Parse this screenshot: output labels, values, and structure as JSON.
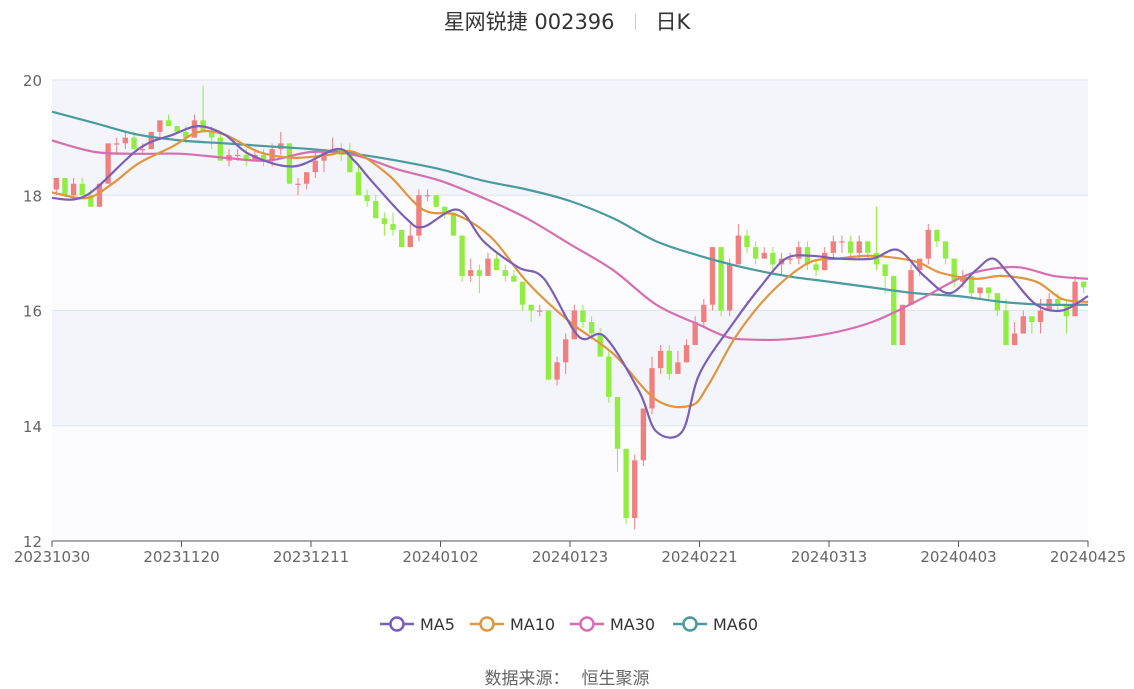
{
  "header": {
    "stock_name_code": "星网锐捷 002396",
    "period": "日K"
  },
  "source": {
    "label": "数据来源：",
    "value": "恒生聚源"
  },
  "colors": {
    "up": "#f08080",
    "down": "#90ee40",
    "ma5": "#7b5fb5",
    "ma10": "#e0953e",
    "ma30": "#d66fb0",
    "ma60": "#4a9a9e",
    "band": "#f3f5fb",
    "grid": "#e0e6f0"
  },
  "chart_data": {
    "type": "candlestick",
    "title": "星网锐捷 002396",
    "ylim": [
      12,
      20
    ],
    "yticks": [
      12,
      14,
      16,
      18,
      20
    ],
    "x_tick_labels": [
      "20231030",
      "20231120",
      "20231211",
      "20240102",
      "20240123",
      "20240221",
      "20240313",
      "20240403",
      "20240425"
    ],
    "x_tick_positions": [
      0,
      15,
      30,
      45,
      60,
      75,
      90,
      105,
      120
    ],
    "n_days": 120,
    "legend": [
      "MA5",
      "MA10",
      "MA30",
      "MA60"
    ],
    "legend_placement": "bottom-center",
    "ohlc": [
      [
        18.1,
        18.3,
        18.0,
        18.3
      ],
      [
        18.3,
        18.3,
        18.0,
        18.0
      ],
      [
        18.0,
        18.3,
        17.9,
        18.2
      ],
      [
        18.2,
        18.3,
        18.0,
        18.0
      ],
      [
        18.0,
        18.1,
        17.8,
        17.8
      ],
      [
        17.8,
        18.2,
        17.8,
        18.2
      ],
      [
        18.2,
        18.9,
        18.2,
        18.9
      ],
      [
        18.9,
        19.0,
        18.7,
        18.9
      ],
      [
        18.9,
        19.1,
        18.8,
        19.0
      ],
      [
        19.0,
        19.1,
        18.8,
        18.8
      ],
      [
        18.8,
        18.9,
        18.7,
        18.8
      ],
      [
        18.8,
        19.1,
        18.8,
        19.1
      ],
      [
        19.1,
        19.3,
        19.0,
        19.3
      ],
      [
        19.3,
        19.4,
        19.2,
        19.2
      ],
      [
        19.2,
        19.2,
        19.1,
        19.1
      ],
      [
        19.1,
        19.2,
        18.9,
        19.0
      ],
      [
        19.0,
        19.4,
        19.0,
        19.3
      ],
      [
        19.3,
        19.9,
        19.1,
        19.1
      ],
      [
        19.1,
        19.2,
        18.8,
        19.0
      ],
      [
        19.0,
        19.1,
        18.6,
        18.6
      ],
      [
        18.6,
        18.8,
        18.5,
        18.7
      ],
      [
        18.7,
        18.8,
        18.6,
        18.7
      ],
      [
        18.7,
        18.8,
        18.5,
        18.6
      ],
      [
        18.6,
        18.8,
        18.6,
        18.7
      ],
      [
        18.7,
        18.8,
        18.5,
        18.6
      ],
      [
        18.6,
        18.9,
        18.5,
        18.8
      ],
      [
        18.8,
        19.1,
        18.7,
        18.9
      ],
      [
        18.9,
        18.9,
        18.2,
        18.2
      ],
      [
        18.2,
        18.3,
        18.0,
        18.2
      ],
      [
        18.2,
        18.4,
        18.1,
        18.4
      ],
      [
        18.4,
        18.8,
        18.3,
        18.6
      ],
      [
        18.6,
        18.8,
        18.4,
        18.8
      ],
      [
        18.8,
        19.0,
        18.7,
        18.8
      ],
      [
        18.8,
        18.9,
        18.6,
        18.7
      ],
      [
        18.7,
        18.9,
        18.4,
        18.4
      ],
      [
        18.4,
        18.5,
        18.0,
        18.0
      ],
      [
        18.0,
        18.1,
        17.8,
        17.9
      ],
      [
        17.9,
        18.0,
        17.6,
        17.6
      ],
      [
        17.6,
        17.7,
        17.3,
        17.5
      ],
      [
        17.5,
        17.7,
        17.3,
        17.4
      ],
      [
        17.4,
        17.4,
        17.1,
        17.1
      ],
      [
        17.1,
        17.5,
        17.1,
        17.3
      ],
      [
        17.3,
        18.1,
        17.2,
        18.0
      ],
      [
        18.0,
        18.1,
        17.9,
        18.0
      ],
      [
        18.0,
        18.0,
        17.8,
        17.8
      ],
      [
        17.8,
        17.8,
        17.6,
        17.7
      ],
      [
        17.7,
        17.7,
        17.3,
        17.3
      ],
      [
        17.3,
        17.3,
        16.5,
        16.6
      ],
      [
        16.6,
        16.9,
        16.5,
        16.7
      ],
      [
        16.7,
        16.8,
        16.3,
        16.6
      ],
      [
        16.6,
        17.0,
        16.6,
        16.9
      ],
      [
        16.9,
        17.0,
        16.7,
        16.7
      ],
      [
        16.7,
        16.8,
        16.5,
        16.6
      ],
      [
        16.6,
        16.7,
        16.5,
        16.5
      ],
      [
        16.5,
        16.5,
        16.0,
        16.1
      ],
      [
        16.1,
        16.1,
        15.8,
        16.0
      ],
      [
        16.0,
        16.1,
        15.9,
        16.0
      ],
      [
        16.0,
        16.0,
        14.8,
        14.8
      ],
      [
        14.8,
        15.2,
        14.7,
        15.1
      ],
      [
        15.1,
        15.6,
        14.9,
        15.5
      ],
      [
        15.5,
        16.1,
        15.5,
        16.0
      ],
      [
        16.0,
        16.1,
        15.7,
        15.8
      ],
      [
        15.8,
        15.9,
        15.5,
        15.6
      ],
      [
        15.6,
        15.7,
        15.2,
        15.2
      ],
      [
        15.2,
        15.3,
        14.4,
        14.5
      ],
      [
        14.5,
        14.5,
        13.2,
        13.6
      ],
      [
        13.6,
        13.6,
        12.3,
        12.4
      ],
      [
        12.4,
        13.5,
        12.2,
        13.4
      ],
      [
        13.4,
        14.3,
        13.3,
        14.3
      ],
      [
        14.3,
        15.2,
        14.2,
        15.0
      ],
      [
        15.0,
        15.4,
        14.9,
        15.3
      ],
      [
        15.3,
        15.4,
        14.8,
        14.9
      ],
      [
        14.9,
        15.3,
        14.9,
        15.1
      ],
      [
        15.1,
        15.5,
        15.1,
        15.4
      ],
      [
        15.4,
        15.9,
        15.4,
        15.8
      ],
      [
        15.8,
        16.2,
        15.7,
        16.1
      ],
      [
        16.1,
        17.1,
        16.0,
        17.1
      ],
      [
        17.1,
        17.1,
        15.9,
        16.0
      ],
      [
        16.0,
        16.9,
        15.9,
        16.8
      ],
      [
        16.8,
        17.5,
        16.8,
        17.3
      ],
      [
        17.3,
        17.4,
        17.0,
        17.1
      ],
      [
        17.1,
        17.2,
        16.8,
        16.9
      ],
      [
        16.9,
        17.1,
        16.9,
        17.0
      ],
      [
        17.0,
        17.1,
        16.7,
        16.8
      ],
      [
        16.8,
        17.0,
        16.6,
        16.9
      ],
      [
        16.9,
        17.0,
        16.8,
        16.9
      ],
      [
        16.9,
        17.2,
        16.8,
        17.1
      ],
      [
        17.1,
        17.2,
        16.7,
        16.8
      ],
      [
        16.8,
        16.9,
        16.6,
        16.7
      ],
      [
        16.7,
        17.1,
        16.7,
        17.0
      ],
      [
        17.0,
        17.3,
        16.9,
        17.2
      ],
      [
        17.2,
        17.3,
        17.0,
        17.2
      ],
      [
        17.2,
        17.3,
        16.9,
        17.0
      ],
      [
        17.0,
        17.3,
        16.9,
        17.2
      ],
      [
        17.2,
        17.2,
        16.9,
        17.0
      ],
      [
        17.0,
        17.8,
        16.7,
        16.8
      ],
      [
        16.8,
        16.8,
        16.3,
        16.6
      ],
      [
        16.6,
        16.6,
        15.4,
        15.4
      ],
      [
        15.4,
        16.1,
        15.4,
        16.1
      ],
      [
        16.1,
        16.8,
        16.1,
        16.7
      ],
      [
        16.7,
        16.9,
        16.6,
        16.9
      ],
      [
        16.9,
        17.5,
        16.8,
        17.4
      ],
      [
        17.4,
        17.4,
        17.1,
        17.2
      ],
      [
        17.2,
        17.2,
        16.8,
        16.9
      ],
      [
        16.9,
        16.9,
        16.4,
        16.5
      ],
      [
        16.5,
        16.7,
        16.4,
        16.6
      ],
      [
        16.6,
        16.6,
        16.2,
        16.3
      ],
      [
        16.3,
        16.4,
        16.2,
        16.4
      ],
      [
        16.4,
        16.4,
        16.2,
        16.3
      ],
      [
        16.3,
        16.3,
        15.9,
        16.0
      ],
      [
        16.0,
        16.2,
        15.4,
        15.4
      ],
      [
        15.4,
        15.8,
        15.4,
        15.6
      ],
      [
        15.6,
        16.0,
        15.6,
        15.9
      ],
      [
        15.9,
        15.9,
        15.6,
        15.8
      ],
      [
        15.8,
        16.2,
        15.6,
        16.0
      ],
      [
        16.0,
        16.3,
        16.0,
        16.2
      ],
      [
        16.2,
        16.3,
        16.0,
        16.1
      ],
      [
        16.1,
        16.2,
        15.6,
        15.9
      ],
      [
        15.9,
        16.6,
        15.9,
        16.5
      ],
      [
        16.5,
        16.5,
        16.3,
        16.4
      ]
    ],
    "ma_knots": {
      "MA5": [
        [
          0,
          17.95
        ],
        [
          4,
          18.0
        ],
        [
          10,
          18.8
        ],
        [
          14,
          19.05
        ],
        [
          17,
          19.2
        ],
        [
          20,
          19.05
        ],
        [
          23,
          18.7
        ],
        [
          28,
          18.5
        ],
        [
          33,
          18.8
        ],
        [
          35,
          18.6
        ],
        [
          37,
          18.25
        ],
        [
          41,
          17.6
        ],
        [
          43,
          17.45
        ],
        [
          47,
          17.75
        ],
        [
          50,
          17.2
        ],
        [
          54,
          16.75
        ],
        [
          57,
          16.55
        ],
        [
          61,
          15.55
        ],
        [
          64,
          15.55
        ],
        [
          68,
          14.6
        ],
        [
          70,
          13.9
        ],
        [
          73,
          13.9
        ],
        [
          75,
          14.9
        ],
        [
          79,
          15.8
        ],
        [
          82,
          16.4
        ],
        [
          85,
          16.9
        ],
        [
          88,
          16.95
        ],
        [
          91,
          16.9
        ],
        [
          95,
          16.9
        ],
        [
          98,
          17.05
        ],
        [
          101,
          16.6
        ],
        [
          104,
          16.3
        ],
        [
          107,
          16.7
        ],
        [
          109,
          16.9
        ],
        [
          111,
          16.6
        ],
        [
          114,
          16.1
        ],
        [
          117,
          16.0
        ],
        [
          120,
          16.25
        ]
      ],
      "MA10": [
        [
          0,
          18.05
        ],
        [
          4,
          17.95
        ],
        [
          7,
          18.2
        ],
        [
          10,
          18.55
        ],
        [
          14,
          18.85
        ],
        [
          17,
          19.1
        ],
        [
          20,
          19.05
        ],
        [
          24,
          18.75
        ],
        [
          28,
          18.65
        ],
        [
          32,
          18.7
        ],
        [
          35,
          18.75
        ],
        [
          39,
          18.35
        ],
        [
          43,
          17.75
        ],
        [
          47,
          17.65
        ],
        [
          51,
          17.25
        ],
        [
          55,
          16.5
        ],
        [
          60,
          15.8
        ],
        [
          65,
          15.25
        ],
        [
          70,
          14.45
        ],
        [
          74,
          14.35
        ],
        [
          76,
          14.7
        ],
        [
          79,
          15.5
        ],
        [
          82,
          16.1
        ],
        [
          85,
          16.55
        ],
        [
          88,
          16.85
        ],
        [
          91,
          16.9
        ],
        [
          95,
          16.95
        ],
        [
          100,
          16.85
        ],
        [
          103,
          16.65
        ],
        [
          107,
          16.55
        ],
        [
          110,
          16.6
        ],
        [
          114,
          16.5
        ],
        [
          117,
          16.2
        ],
        [
          120,
          16.15
        ]
      ],
      "MA30": [
        [
          0,
          18.95
        ],
        [
          5,
          18.75
        ],
        [
          10,
          18.72
        ],
        [
          15,
          18.72
        ],
        [
          20,
          18.65
        ],
        [
          25,
          18.6
        ],
        [
          30,
          18.75
        ],
        [
          35,
          18.7
        ],
        [
          40,
          18.45
        ],
        [
          45,
          18.25
        ],
        [
          50,
          17.95
        ],
        [
          55,
          17.6
        ],
        [
          60,
          17.15
        ],
        [
          65,
          16.7
        ],
        [
          70,
          16.1
        ],
        [
          75,
          15.75
        ],
        [
          78,
          15.55
        ],
        [
          80,
          15.5
        ],
        [
          85,
          15.5
        ],
        [
          90,
          15.6
        ],
        [
          95,
          15.8
        ],
        [
          100,
          16.15
        ],
        [
          105,
          16.55
        ],
        [
          108,
          16.7
        ],
        [
          112,
          16.75
        ],
        [
          116,
          16.6
        ],
        [
          120,
          16.55
        ]
      ],
      "MA60": [
        [
          0,
          19.45
        ],
        [
          5,
          19.25
        ],
        [
          10,
          19.05
        ],
        [
          15,
          18.95
        ],
        [
          20,
          18.9
        ],
        [
          25,
          18.85
        ],
        [
          30,
          18.8
        ],
        [
          35,
          18.72
        ],
        [
          40,
          18.6
        ],
        [
          45,
          18.45
        ],
        [
          50,
          18.25
        ],
        [
          55,
          18.1
        ],
        [
          60,
          17.9
        ],
        [
          65,
          17.6
        ],
        [
          70,
          17.2
        ],
        [
          75,
          16.95
        ],
        [
          80,
          16.75
        ],
        [
          85,
          16.6
        ],
        [
          90,
          16.5
        ],
        [
          95,
          16.4
        ],
        [
          100,
          16.3
        ],
        [
          105,
          16.25
        ],
        [
          110,
          16.15
        ],
        [
          115,
          16.1
        ],
        [
          120,
          16.1
        ]
      ]
    }
  }
}
